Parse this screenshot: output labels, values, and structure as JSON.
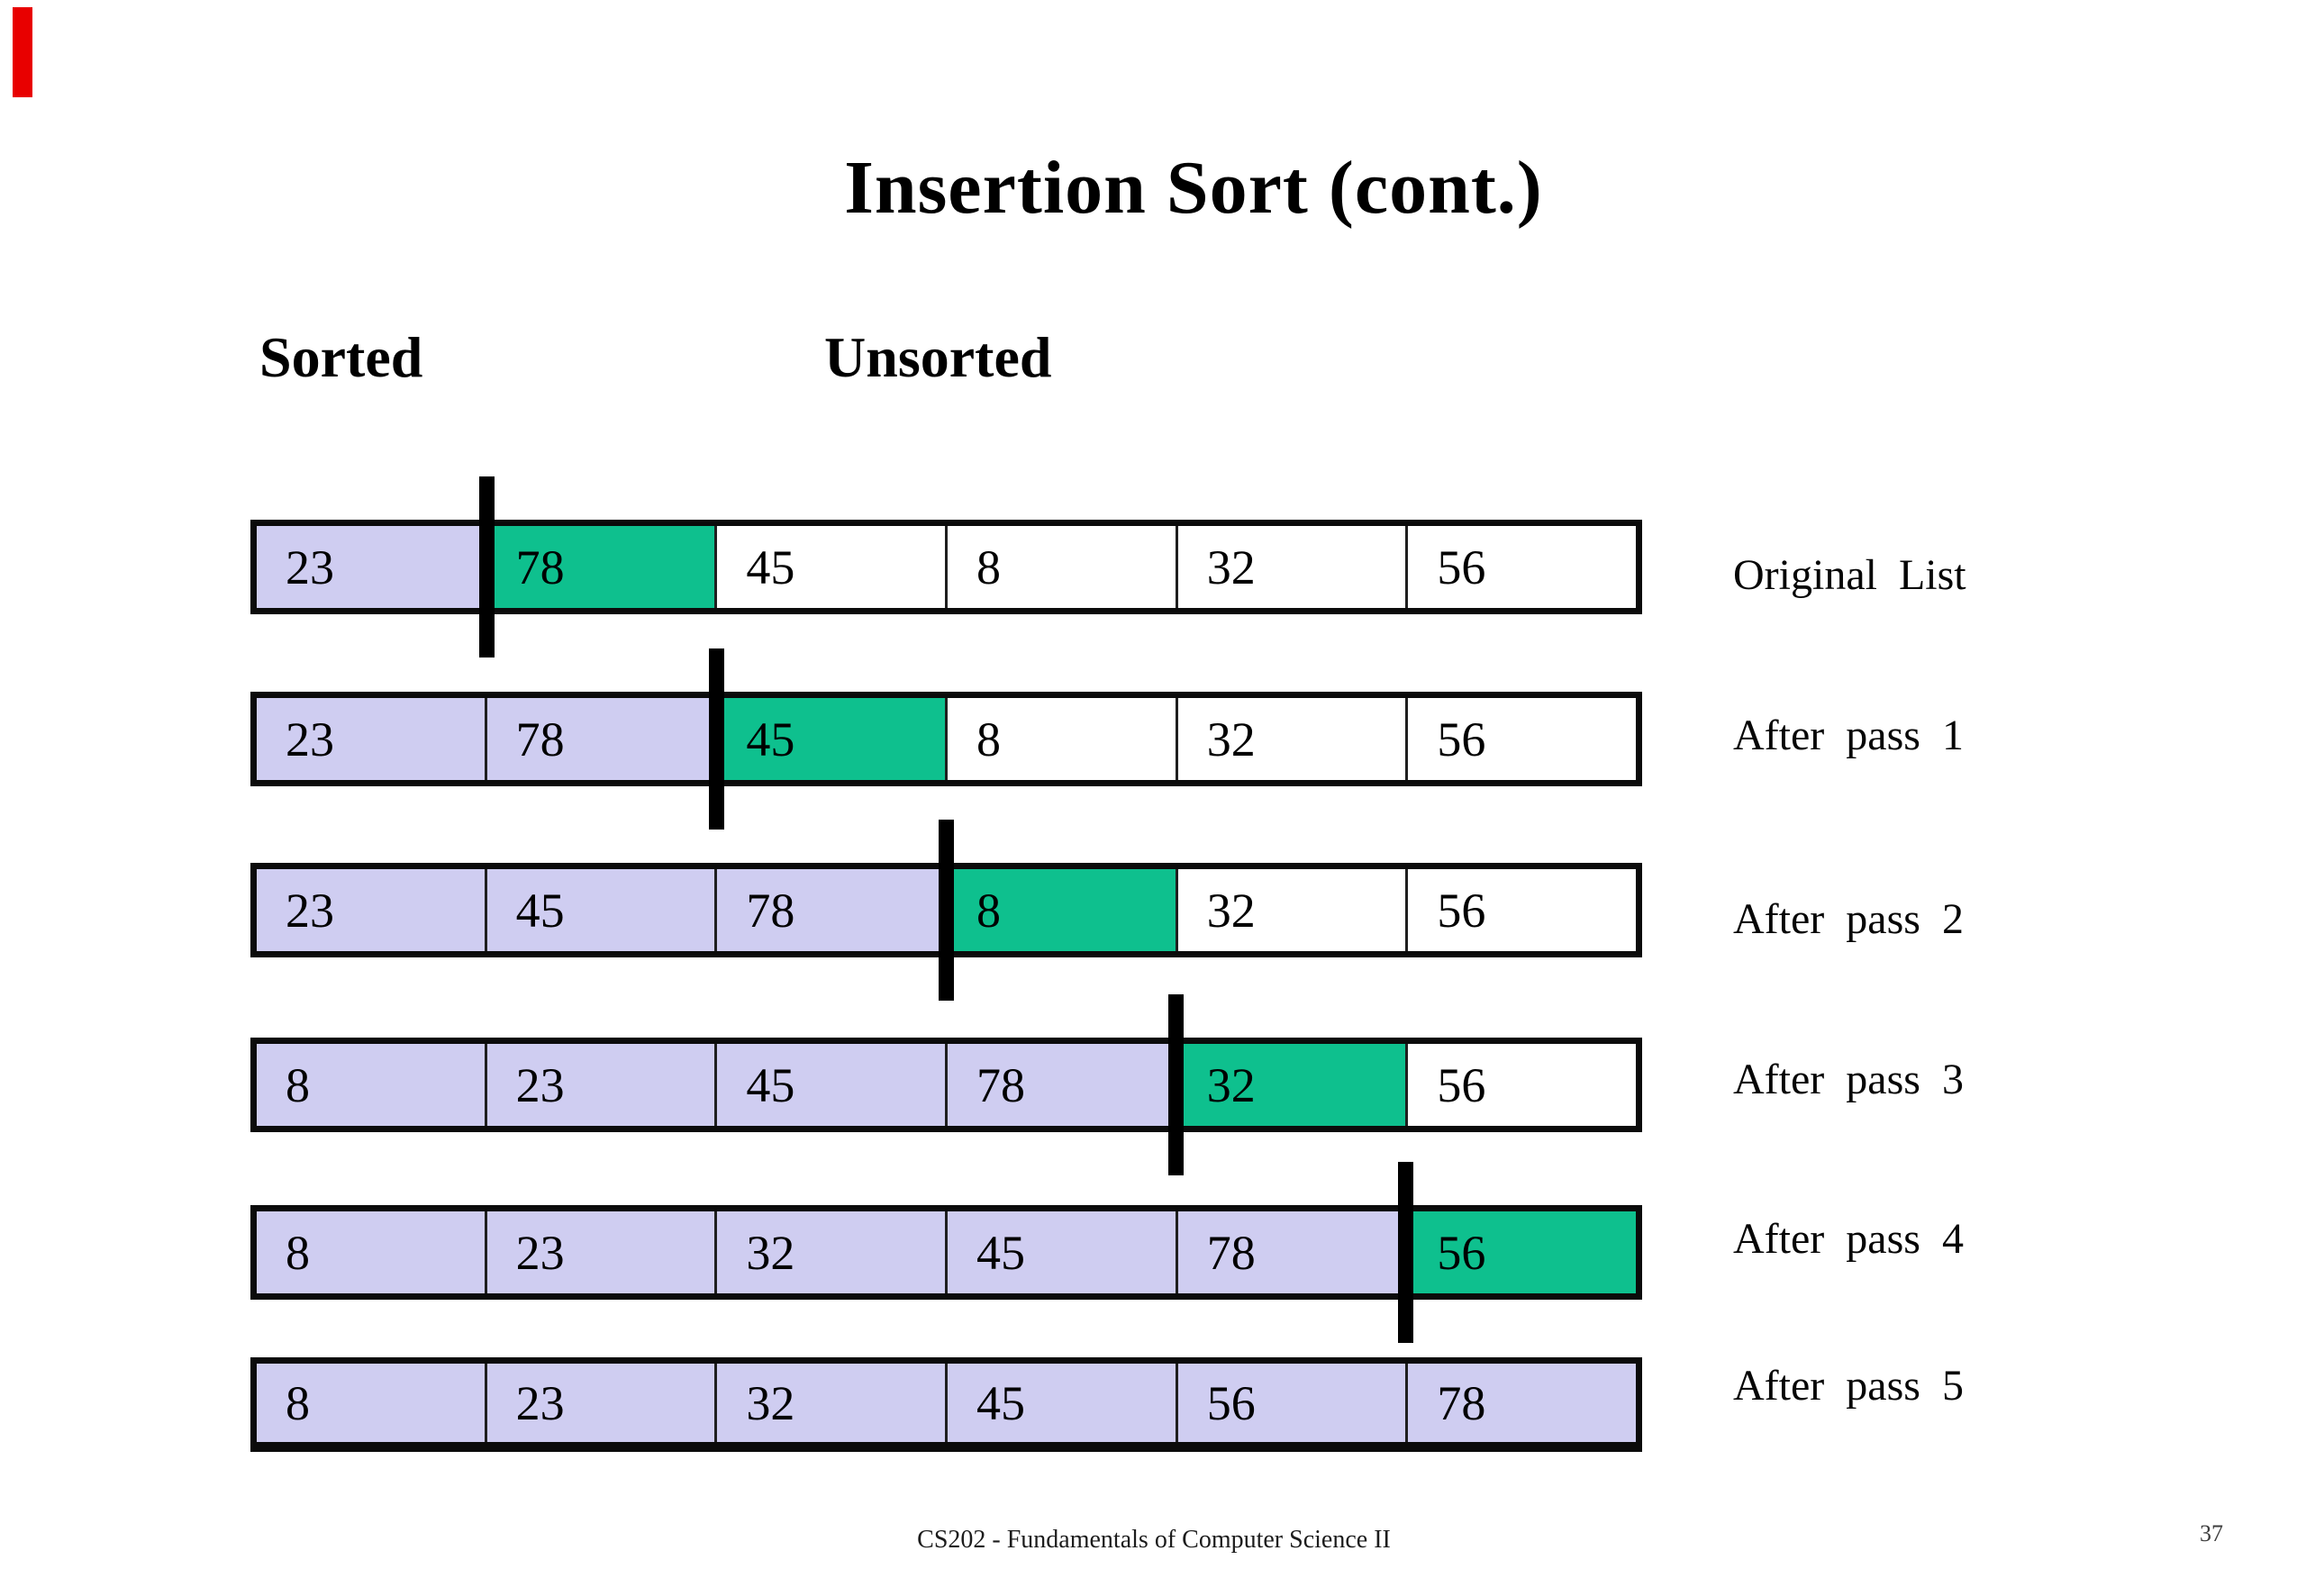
{
  "slide": {
    "title": "Insertion Sort (cont.)",
    "sorted_heading": "Sorted",
    "unsorted_heading": "Unsorted",
    "footer": "CS202 - Fundamentals of Computer Science II",
    "page_number": "37"
  },
  "colors": {
    "sorted_fill": "#cfcdf1",
    "current_fill": "#0ec08e",
    "unsorted_fill": "#ffffff",
    "divider_marker": "#000000",
    "corner_marker": "#e80000"
  },
  "passes": [
    {
      "label": "Original List",
      "values": [
        23,
        78,
        45,
        8,
        32,
        56
      ],
      "sorted_count": 1,
      "current_index": 1,
      "divider_after": 1
    },
    {
      "label": "After pass 1",
      "values": [
        23,
        78,
        45,
        8,
        32,
        56
      ],
      "sorted_count": 2,
      "current_index": 2,
      "divider_after": 2
    },
    {
      "label": "After pass 2",
      "values": [
        23,
        45,
        78,
        8,
        32,
        56
      ],
      "sorted_count": 3,
      "current_index": 3,
      "divider_after": 3
    },
    {
      "label": "After pass 3",
      "values": [
        8,
        23,
        45,
        78,
        32,
        56
      ],
      "sorted_count": 4,
      "current_index": 4,
      "divider_after": 4
    },
    {
      "label": "After pass 4",
      "values": [
        8,
        23,
        32,
        45,
        78,
        56
      ],
      "sorted_count": 5,
      "current_index": 5,
      "divider_after": 5
    },
    {
      "label": "After pass 5",
      "values": [
        8,
        23,
        32,
        45,
        56,
        78
      ],
      "sorted_count": 6,
      "current_index": -1,
      "divider_after": -1
    }
  ]
}
